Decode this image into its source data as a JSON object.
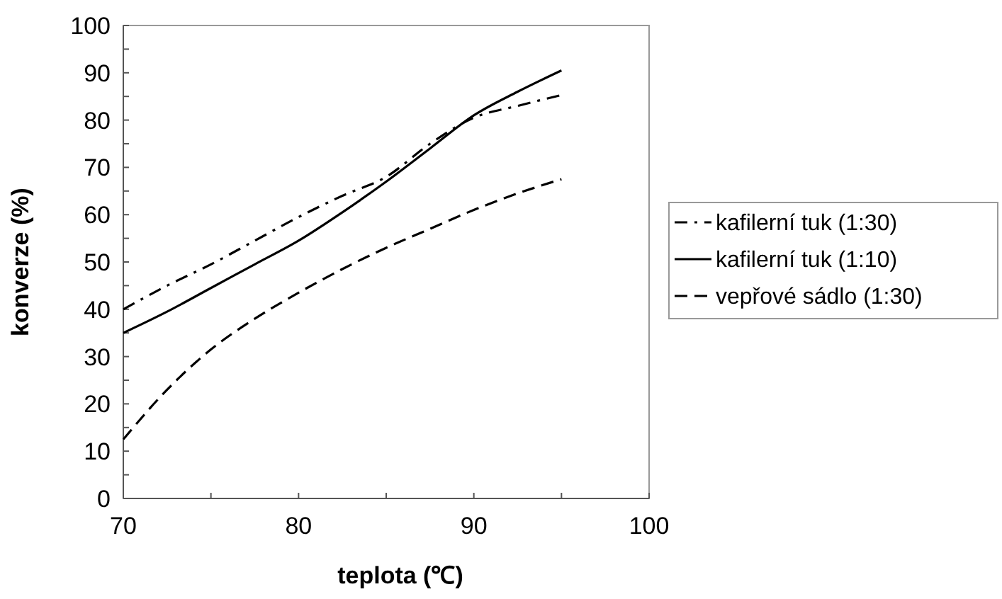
{
  "chart_data": {
    "type": "line",
    "xlabel": "teplota (℃)",
    "ylabel": "konverze (%)",
    "xlim": [
      70,
      100
    ],
    "xticks": [
      70,
      {
        "value": 75,
        "label": null
      },
      80,
      {
        "value": 85,
        "label": null
      },
      90,
      {
        "value": 95,
        "label": null
      },
      100
    ],
    "ylim": [
      0,
      100
    ],
    "yticks": [
      0,
      {
        "value": 5,
        "label": null
      },
      10,
      {
        "value": 15,
        "label": null
      },
      20,
      {
        "value": 25,
        "label": null
      },
      30,
      {
        "value": 35,
        "label": null
      },
      40,
      {
        "value": 45,
        "label": null
      },
      50,
      {
        "value": 55,
        "label": null
      },
      60,
      {
        "value": 65,
        "label": null
      },
      70,
      {
        "value": 75,
        "label": null
      },
      80,
      {
        "value": 85,
        "label": null
      },
      90,
      {
        "value": 95,
        "label": null
      },
      100
    ],
    "grid": false,
    "legend": "right",
    "series": [
      {
        "name": "kafilerní tuk (1:30)",
        "color": "#000000",
        "line_style": "dashdot",
        "x": [
          70,
          72.5,
          75,
          77.5,
          80,
          82.5,
          85,
          87.5,
          90,
          92.5,
          95
        ],
        "values": [
          40,
          45,
          49.5,
          54.5,
          59.5,
          64,
          68,
          75,
          80.5,
          83,
          85.3
        ]
      },
      {
        "name": "kafilerní tuk (1:10)",
        "color": "#000000",
        "line_style": "solid",
        "x": [
          70,
          72.5,
          75,
          77.5,
          80,
          82.5,
          85,
          87.5,
          90,
          92.5,
          95
        ],
        "values": [
          35,
          39.5,
          44.5,
          49.5,
          54.5,
          60.5,
          67,
          74,
          81,
          86,
          90.5
        ]
      },
      {
        "name": "vepřové sádlo (1:30)",
        "color": "#000000",
        "line_style": "dashed",
        "x": [
          70,
          72.5,
          75,
          77.5,
          80,
          82.5,
          85,
          87.5,
          90,
          92.5,
          95
        ],
        "values": [
          12.5,
          23,
          31.5,
          38,
          43.5,
          48.5,
          53,
          57,
          61,
          64.5,
          67.5
        ]
      }
    ]
  }
}
